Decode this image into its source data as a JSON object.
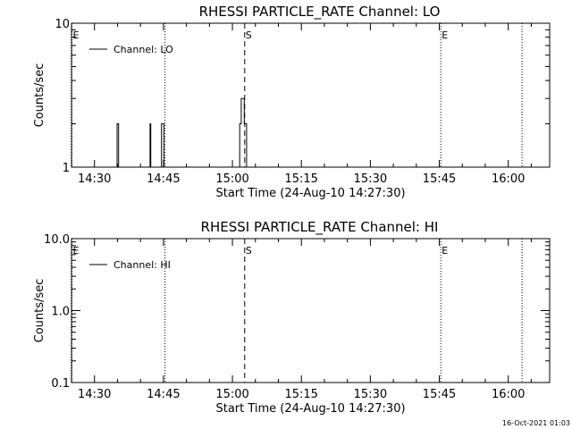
{
  "chart_data": [
    {
      "type": "line",
      "title": "RHESSI PARTICLE_RATE Channel: LO",
      "xlabel": "Start Time (24-Aug-10 14:27:30)",
      "ylabel": "Counts/sec",
      "yscale": "log",
      "ylim": [
        1,
        10
      ],
      "yticks": [
        "1",
        "10"
      ],
      "xlim": [
        "14:25",
        "16:09"
      ],
      "xticks": [
        "14:30",
        "14:45",
        "15:00",
        "15:15",
        "15:30",
        "15:45",
        "16:00"
      ],
      "legend": "top-left",
      "series": [
        {
          "name": "Channel: LO",
          "x": [
            "14:34:40",
            "14:34:50",
            "14:35:00",
            "14:35:10",
            "14:35:20",
            "14:35:30",
            "14:41:50",
            "14:42:00",
            "14:42:10",
            "14:42:20",
            "14:42:30",
            "14:44:20",
            "14:44:30",
            "14:44:40",
            "14:44:50",
            "14:45:00",
            "14:45:10",
            "14:45:20",
            "15:01:20",
            "15:01:30",
            "15:01:40",
            "15:01:50",
            "15:02:00",
            "15:02:10",
            "15:02:20",
            "15:02:30",
            "15:02:40",
            "15:02:50",
            "15:03:00",
            "15:03:10",
            "15:03:20",
            "15:03:30",
            "15:03:40",
            "15:03:50"
          ],
          "y": [
            1,
            1,
            2,
            2,
            1,
            1,
            1,
            1,
            2,
            1,
            1,
            1,
            1,
            2,
            2,
            2,
            1,
            1,
            1,
            1,
            2,
            2,
            3,
            3,
            3,
            3,
            2,
            2,
            2,
            1,
            1,
            1,
            1,
            1
          ]
        }
      ],
      "markers": [
        {
          "label": "E",
          "time": "14:25",
          "style": "dotted"
        },
        {
          "label": "",
          "time": "14:45:20",
          "style": "dotted"
        },
        {
          "label": "S",
          "time": "15:02:40",
          "style": "dashed"
        },
        {
          "label": "E",
          "time": "15:45:20",
          "style": "dotted"
        },
        {
          "label": "",
          "time": "16:03",
          "style": "dotted"
        }
      ]
    },
    {
      "type": "line",
      "title": "RHESSI PARTICLE_RATE Channel: HI",
      "xlabel": "Start Time (24-Aug-10 14:27:30)",
      "ylabel": "Counts/sec",
      "yscale": "log",
      "ylim": [
        0.1,
        10
      ],
      "yticks": [
        "0.1",
        "1.0",
        "10.0"
      ],
      "xlim": [
        "14:25",
        "16:09"
      ],
      "xticks": [
        "14:30",
        "14:45",
        "15:00",
        "15:15",
        "15:30",
        "15:45",
        "16:00"
      ],
      "legend": "top-left",
      "series": [
        {
          "name": "Channel: HI",
          "x": [
            "15:01:40",
            "15:03:10"
          ],
          "y": [
            1,
            1
          ]
        }
      ],
      "markers": [
        {
          "label": "E",
          "time": "14:25",
          "style": "dotted"
        },
        {
          "label": "",
          "time": "14:45:20",
          "style": "dotted"
        },
        {
          "label": "S",
          "time": "15:02:40",
          "style": "dashed"
        },
        {
          "label": "E",
          "time": "15:45:20",
          "style": "dotted"
        },
        {
          "label": "",
          "time": "16:03",
          "style": "dotted"
        }
      ]
    }
  ],
  "footer": {
    "timestamp": "16-Oct-2021 01:03"
  }
}
